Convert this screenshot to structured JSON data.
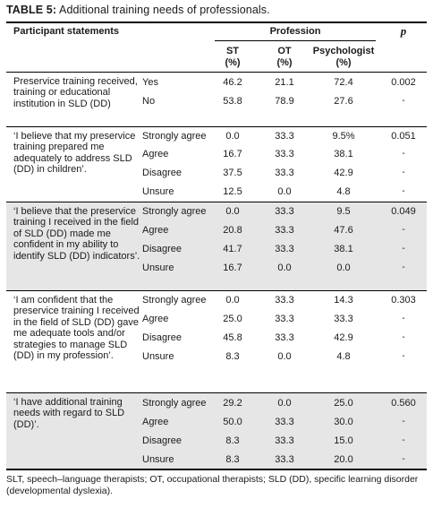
{
  "table": {
    "label": "TABLE 5:",
    "caption": "Additional training needs of professionals.",
    "headers": {
      "statements": "Participant statements",
      "profession": "Profession",
      "p": "p",
      "st": "ST",
      "st_unit": "(%)",
      "ot": "OT",
      "ot_unit": "(%)",
      "psychologist": "Psychologist",
      "psychologist_unit": "(%)"
    },
    "groups": [
      {
        "statement": "Preservice training received, training or educational institution in SLD (DD)",
        "rows": [
          {
            "response": "Yes",
            "st": "46.2",
            "ot": "21.1",
            "psy": "72.4",
            "p": "0.002"
          },
          {
            "response": "No",
            "st": "53.8",
            "ot": "78.9",
            "psy": "27.6",
            "p": "-"
          }
        ]
      },
      {
        "statement": "‘I believe that my preservice training prepared me adequately to address SLD (DD) in children’.",
        "rows": [
          {
            "response": "Strongly agree",
            "st": "0.0",
            "ot": "33.3",
            "psy": "9.5%",
            "p": "0.051"
          },
          {
            "response": "Agree",
            "st": "16.7",
            "ot": "33.3",
            "psy": "38.1",
            "p": "-"
          },
          {
            "response": "Disagree",
            "st": "37.5",
            "ot": "33.3",
            "psy": "42.9",
            "p": "-"
          },
          {
            "response": "Unsure",
            "st": "12.5",
            "ot": "0.0",
            "psy": "4.8",
            "p": "-"
          }
        ]
      },
      {
        "statement": "‘I believe that the preservice training I received in the field of SLD (DD) made me confident in my ability to identify SLD (DD) indicators’.",
        "rows": [
          {
            "response": "Strongly agree",
            "st": "0.0",
            "ot": "33.3",
            "psy": "9.5",
            "p": "0.049"
          },
          {
            "response": "Agree",
            "st": "20.8",
            "ot": "33.3",
            "psy": "47.6",
            "p": "-"
          },
          {
            "response": "Disagree",
            "st": "41.7",
            "ot": "33.3",
            "psy": "38.1",
            "p": "-"
          },
          {
            "response": "Unsure",
            "st": "16.7",
            "ot": "0.0",
            "psy": "0.0",
            "p": "-"
          }
        ]
      },
      {
        "statement": "‘I am confident that the preservice training I received in the field of SLD (DD) gave me adequate tools and/or strategies to manage SLD (DD) in my profession’.",
        "rows": [
          {
            "response": "Strongly agree",
            "st": "0.0",
            "ot": "33.3",
            "psy": "14.3",
            "p": "0.303"
          },
          {
            "response": "Agree",
            "st": "25.0",
            "ot": "33.3",
            "psy": "33.3",
            "p": "-"
          },
          {
            "response": "Disagree",
            "st": "45.8",
            "ot": "33.3",
            "psy": "42.9",
            "p": "-"
          },
          {
            "response": "Unsure",
            "st": "8.3",
            "ot": "0.0",
            "psy": "4.8",
            "p": "-"
          }
        ]
      },
      {
        "statement": "‘I have additional training needs with regard to SLD (DD)’.",
        "rows": [
          {
            "response": "Strongly agree",
            "st": "29.2",
            "ot": "0.0",
            "psy": "25.0",
            "p": "0.560"
          },
          {
            "response": "Agree",
            "st": "50.0",
            "ot": "33.3",
            "psy": "30.0",
            "p": "-"
          },
          {
            "response": "Disagree",
            "st": "8.3",
            "ot": "33.3",
            "psy": "15.0",
            "p": "-"
          },
          {
            "response": "Unsure",
            "st": "8.3",
            "ot": "33.3",
            "psy": "20.0",
            "p": "-"
          }
        ]
      }
    ],
    "footnote": "SLT, speech–language therapists; OT, occupational therapists; SLD (DD), specific learning disorder (developmental dyslexia)."
  }
}
